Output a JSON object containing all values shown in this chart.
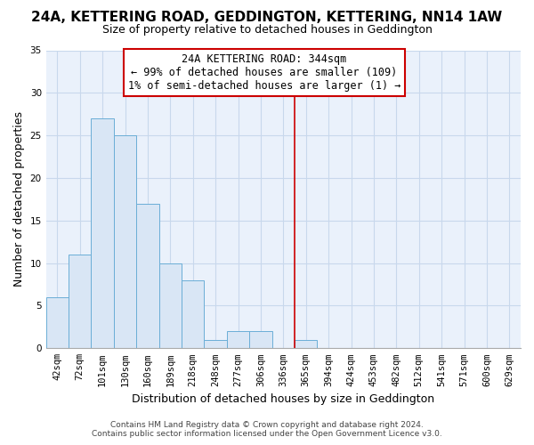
{
  "title": "24A, KETTERING ROAD, GEDDINGTON, KETTERING, NN14 1AW",
  "subtitle": "Size of property relative to detached houses in Geddington",
  "xlabel": "Distribution of detached houses by size in Geddington",
  "ylabel": "Number of detached properties",
  "bin_labels": [
    "42sqm",
    "72sqm",
    "101sqm",
    "130sqm",
    "160sqm",
    "189sqm",
    "218sqm",
    "248sqm",
    "277sqm",
    "306sqm",
    "336sqm",
    "365sqm",
    "394sqm",
    "424sqm",
    "453sqm",
    "482sqm",
    "512sqm",
    "541sqm",
    "571sqm",
    "600sqm",
    "629sqm"
  ],
  "bar_heights": [
    6,
    11,
    27,
    25,
    17,
    10,
    8,
    1,
    2,
    2,
    0,
    1,
    0,
    0,
    0,
    0,
    0,
    0,
    0,
    0,
    0
  ],
  "bar_color": "#d9e6f5",
  "bar_edge_color": "#6baed6",
  "vline_x_index": 10.5,
  "ylim": [
    0,
    35
  ],
  "yticks": [
    0,
    5,
    10,
    15,
    20,
    25,
    30,
    35
  ],
  "annotation_title": "24A KETTERING ROAD: 344sqm",
  "annotation_line1": "← 99% of detached houses are smaller (109)",
  "annotation_line2": "1% of semi-detached houses are larger (1) →",
  "annotation_box_color": "#ffffff",
  "annotation_box_edge": "#cc0000",
  "vline_color": "#cc0000",
  "footer1": "Contains HM Land Registry data © Crown copyright and database right 2024.",
  "footer2": "Contains public sector information licensed under the Open Government Licence v3.0.",
  "background_color": "#ffffff",
  "plot_bg_color": "#eaf1fb",
  "grid_color": "#c8d8ec",
  "title_fontsize": 11,
  "subtitle_fontsize": 9,
  "ylabel_fontsize": 9,
  "xlabel_fontsize": 9,
  "tick_fontsize": 7.5,
  "ann_fontsize": 8.5
}
